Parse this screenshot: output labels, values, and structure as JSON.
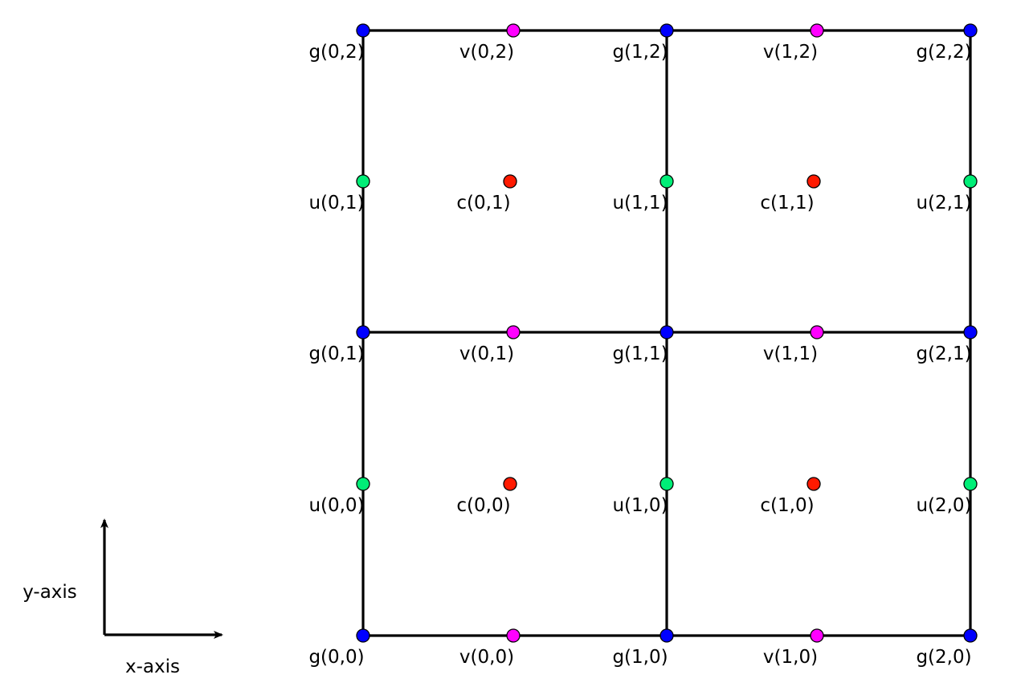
{
  "colors": {
    "g": "#0000ff",
    "u": "#00ee77",
    "v": "#ff00ff",
    "c": "#ff1a00",
    "line": "#000000"
  },
  "axes": {
    "x_label": "x-axis",
    "y_label": "y-axis"
  },
  "cells": {
    "nx": 2,
    "ny": 2
  },
  "nodes": {
    "g": [
      {
        "i": 0,
        "j": 0,
        "label": "g(0,0)"
      },
      {
        "i": 1,
        "j": 0,
        "label": "g(1,0)"
      },
      {
        "i": 2,
        "j": 0,
        "label": "g(2,0)"
      },
      {
        "i": 0,
        "j": 1,
        "label": "g(0,1)"
      },
      {
        "i": 1,
        "j": 1,
        "label": "g(1,1)"
      },
      {
        "i": 2,
        "j": 1,
        "label": "g(2,1)"
      },
      {
        "i": 0,
        "j": 2,
        "label": "g(0,2)"
      },
      {
        "i": 1,
        "j": 2,
        "label": "g(1,2)"
      },
      {
        "i": 2,
        "j": 2,
        "label": "g(2,2)"
      }
    ],
    "u": [
      {
        "i": 0,
        "j": 0,
        "label": "u(0,0)"
      },
      {
        "i": 1,
        "j": 0,
        "label": "u(1,0)"
      },
      {
        "i": 2,
        "j": 0,
        "label": "u(2,0)"
      },
      {
        "i": 0,
        "j": 1,
        "label": "u(0,1)"
      },
      {
        "i": 1,
        "j": 1,
        "label": "u(1,1)"
      },
      {
        "i": 2,
        "j": 1,
        "label": "u(2,1)"
      }
    ],
    "v": [
      {
        "i": 0,
        "j": 0,
        "label": "v(0,0)"
      },
      {
        "i": 1,
        "j": 0,
        "label": "v(1,0)"
      },
      {
        "i": 0,
        "j": 1,
        "label": "v(0,1)"
      },
      {
        "i": 1,
        "j": 1,
        "label": "v(1,1)"
      },
      {
        "i": 0,
        "j": 2,
        "label": "v(0,2)"
      },
      {
        "i": 1,
        "j": 2,
        "label": "v(1,2)"
      }
    ],
    "c": [
      {
        "i": 0,
        "j": 0,
        "label": "c(0,0)"
      },
      {
        "i": 1,
        "j": 0,
        "label": "c(1,0)"
      },
      {
        "i": 0,
        "j": 1,
        "label": "c(0,1)"
      },
      {
        "i": 1,
        "j": 1,
        "label": "c(1,1)"
      }
    ]
  }
}
